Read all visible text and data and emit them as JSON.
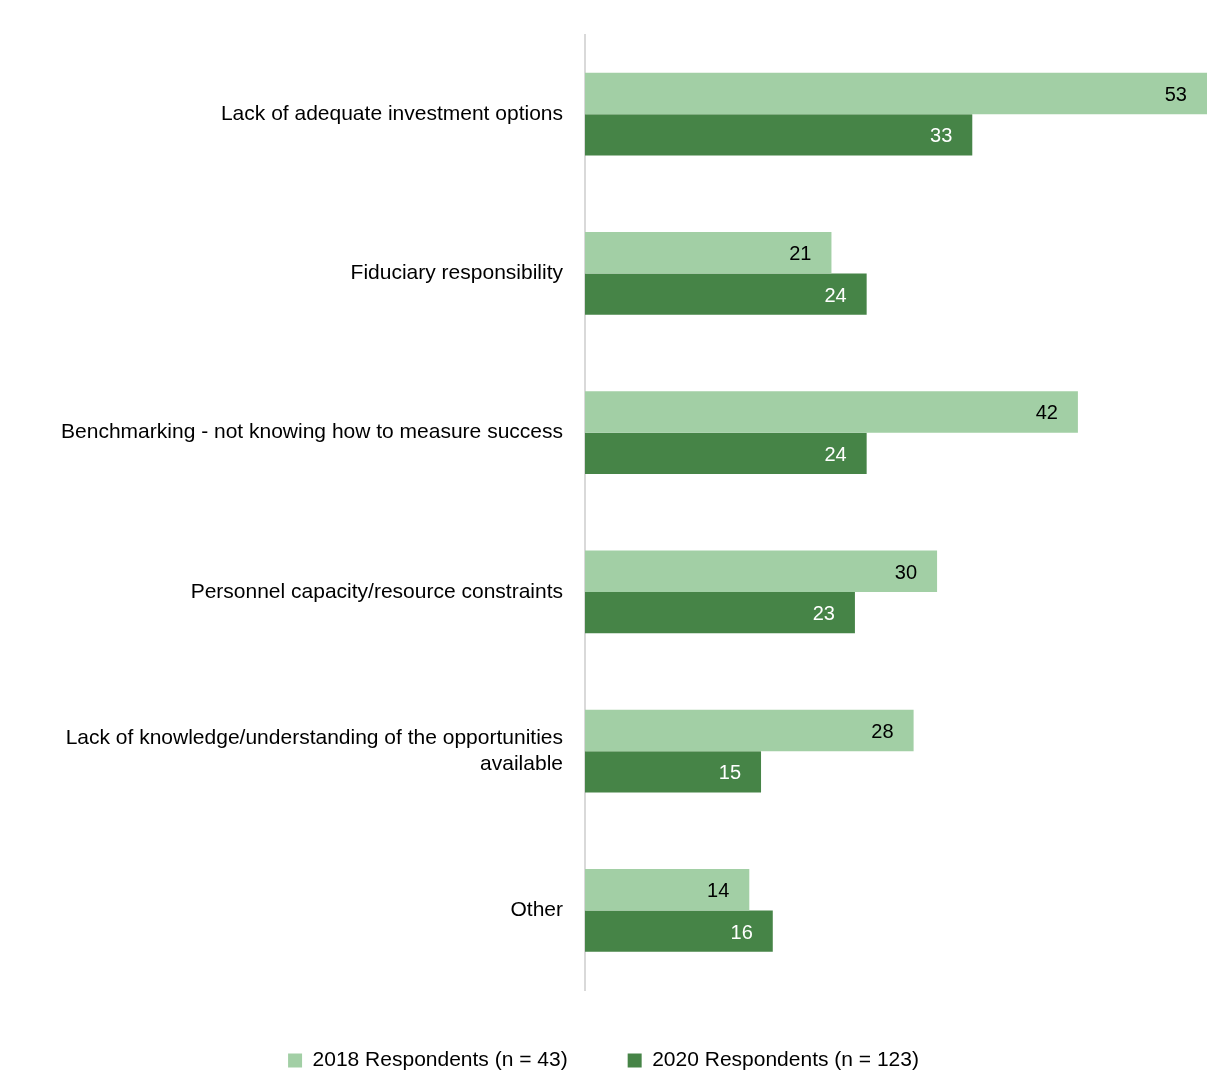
{
  "chart_data": {
    "type": "bar",
    "orientation": "horizontal",
    "categories": [
      "Lack of adequate investment options",
      "Fiduciary responsibility",
      "Benchmarking - not knowing how to measure success",
      "Personnel capacity/resource constraints",
      "Lack of knowledge/understanding of the opportunities available",
      "Other"
    ],
    "series": [
      {
        "name": "2018 Respondents (n = 43)",
        "color": "#a2cfa5",
        "values": [
          53,
          21,
          42,
          30,
          28,
          14
        ]
      },
      {
        "name": "2020 Respondents (n = 123)",
        "color": "#468447",
        "values": [
          33,
          24,
          24,
          23,
          15,
          16
        ]
      }
    ],
    "xlim": [
      0,
      53
    ],
    "data_labels": true,
    "tick_labels": "y",
    "legend": "bottom"
  }
}
